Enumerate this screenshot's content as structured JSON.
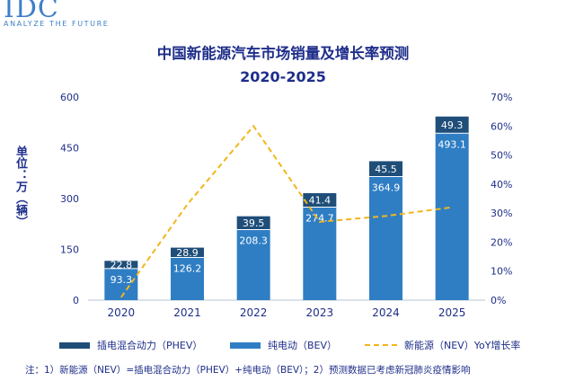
{
  "brand": {
    "mark": "IDC",
    "tagline": "ANALYZE THE FUTURE"
  },
  "chart_data": {
    "type": "bar",
    "stacked": true,
    "title": "中国新能源汽车市场销量及增长率预测",
    "subtitle": "2020-2025",
    "ylabel": "单位：万（辆）",
    "ylim": [
      0,
      600
    ],
    "y_ticks": [
      0,
      150,
      300,
      450,
      600
    ],
    "y2lim": [
      0,
      0.7
    ],
    "y2_ticks": [
      "0%",
      "10%",
      "20%",
      "30%",
      "40%",
      "50%",
      "60%",
      "70%"
    ],
    "categories": [
      "2020",
      "2021",
      "2022",
      "2023",
      "2024",
      "2025"
    ],
    "series": [
      {
        "name": "纯电动（BEV）",
        "color": "#2f7ec4",
        "values": [
          93.3,
          126.2,
          208.3,
          274.7,
          364.9,
          493.1
        ],
        "labels": [
          "93.3",
          "126.2",
          "208.3",
          "274.7",
          "364.9",
          "493.1"
        ]
      },
      {
        "name": "插电混合动力（PHEV）",
        "color": "#1f4e79",
        "values": [
          22.8,
          28.9,
          39.5,
          41.4,
          45.5,
          49.3
        ],
        "labels": [
          "22.8",
          "28.9",
          "39.5",
          "41.4",
          "45.5",
          "49.3"
        ]
      }
    ],
    "line": {
      "name": "新能源（NEV）YoY增长率",
      "color": "#f2b61d",
      "axis": "right",
      "values": [
        0.01,
        0.33,
        0.6,
        0.27,
        0.29,
        0.32
      ]
    },
    "legend_position": "bottom",
    "grid": false
  },
  "legend": {
    "phev": "插电混合动力（PHEV）",
    "bev": "纯电动（BEV）",
    "nev": "新能源（NEV）YoY增长率"
  },
  "note": "注：1）新能源（NEV）=插电混合动力（PHEV）+纯电动（BEV）；2）预测数据已考虑新冠肺炎疫情影响"
}
